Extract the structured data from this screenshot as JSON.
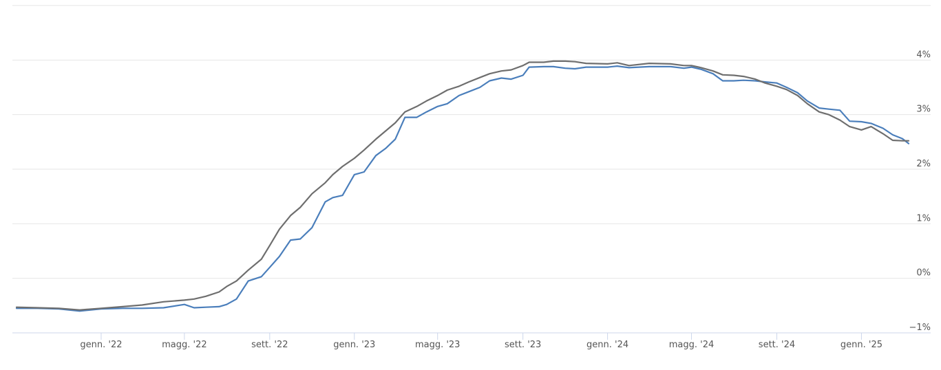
{
  "chart_data": {
    "type": "line",
    "title": "",
    "xlabel": "",
    "ylabel": "",
    "x_start": "2021-09",
    "x_end": "2025-03",
    "ylim": [
      -1,
      5
    ],
    "y_ticks": [
      {
        "value": -1,
        "label": "−1%"
      },
      {
        "value": 0,
        "label": "0%"
      },
      {
        "value": 1,
        "label": "1%"
      },
      {
        "value": 2,
        "label": "2%"
      },
      {
        "value": 3,
        "label": "3%"
      },
      {
        "value": 4,
        "label": "4%"
      }
    ],
    "x_ticks": [
      {
        "date": "2022-01-01",
        "label": "genn. '22"
      },
      {
        "date": "2022-05-01",
        "label": "magg. '22"
      },
      {
        "date": "2022-09-01",
        "label": "sett. '22"
      },
      {
        "date": "2023-01-01",
        "label": "genn. '23"
      },
      {
        "date": "2023-05-01",
        "label": "magg. '23"
      },
      {
        "date": "2023-09-01",
        "label": "sett. '23"
      },
      {
        "date": "2024-01-01",
        "label": "genn. '24"
      },
      {
        "date": "2024-05-01",
        "label": "magg. '24"
      },
      {
        "date": "2024-09-01",
        "label": "sett. '24"
      },
      {
        "date": "2025-01-01",
        "label": "genn. '25"
      }
    ],
    "grid": true,
    "legend": "none",
    "series": [
      {
        "color": "#4a7ebb",
        "points": [
          [
            "2021-09-01",
            -0.55
          ],
          [
            "2021-10-01",
            -0.55
          ],
          [
            "2021-11-01",
            -0.56
          ],
          [
            "2021-12-01",
            -0.6
          ],
          [
            "2022-01-01",
            -0.56
          ],
          [
            "2022-02-01",
            -0.55
          ],
          [
            "2022-03-01",
            -0.55
          ],
          [
            "2022-04-01",
            -0.54
          ],
          [
            "2022-05-01",
            -0.48
          ],
          [
            "2022-05-15",
            -0.54
          ],
          [
            "2022-06-01",
            -0.53
          ],
          [
            "2022-06-20",
            -0.52
          ],
          [
            "2022-07-01",
            -0.48
          ],
          [
            "2022-07-15",
            -0.38
          ],
          [
            "2022-08-01",
            -0.05
          ],
          [
            "2022-08-20",
            0.03
          ],
          [
            "2022-09-01",
            0.2
          ],
          [
            "2022-09-15",
            0.4
          ],
          [
            "2022-10-01",
            0.7
          ],
          [
            "2022-10-15",
            0.72
          ],
          [
            "2022-11-01",
            0.93
          ],
          [
            "2022-11-20",
            1.4
          ],
          [
            "2022-12-01",
            1.48
          ],
          [
            "2022-12-15",
            1.52
          ],
          [
            "2023-01-01",
            1.9
          ],
          [
            "2023-01-15",
            1.95
          ],
          [
            "2023-02-01",
            2.25
          ],
          [
            "2023-02-15",
            2.38
          ],
          [
            "2023-03-01",
            2.55
          ],
          [
            "2023-03-15",
            2.95
          ],
          [
            "2023-04-01",
            2.95
          ],
          [
            "2023-04-15",
            3.05
          ],
          [
            "2023-05-01",
            3.15
          ],
          [
            "2023-05-15",
            3.2
          ],
          [
            "2023-06-01",
            3.35
          ],
          [
            "2023-06-15",
            3.42
          ],
          [
            "2023-07-01",
            3.5
          ],
          [
            "2023-07-15",
            3.62
          ],
          [
            "2023-08-01",
            3.67
          ],
          [
            "2023-08-15",
            3.65
          ],
          [
            "2023-09-01",
            3.72
          ],
          [
            "2023-09-10",
            3.87
          ],
          [
            "2023-10-01",
            3.88
          ],
          [
            "2023-10-15",
            3.88
          ],
          [
            "2023-11-01",
            3.85
          ],
          [
            "2023-11-15",
            3.84
          ],
          [
            "2023-12-01",
            3.87
          ],
          [
            "2024-01-01",
            3.87
          ],
          [
            "2024-01-15",
            3.89
          ],
          [
            "2024-02-01",
            3.86
          ],
          [
            "2024-03-01",
            3.88
          ],
          [
            "2024-04-01",
            3.88
          ],
          [
            "2024-04-20",
            3.85
          ],
          [
            "2024-05-01",
            3.87
          ],
          [
            "2024-05-15",
            3.83
          ],
          [
            "2024-06-01",
            3.75
          ],
          [
            "2024-06-15",
            3.62
          ],
          [
            "2024-07-01",
            3.62
          ],
          [
            "2024-07-15",
            3.63
          ],
          [
            "2024-08-01",
            3.62
          ],
          [
            "2024-08-15",
            3.6
          ],
          [
            "2024-09-01",
            3.58
          ],
          [
            "2024-09-15",
            3.5
          ],
          [
            "2024-10-01",
            3.4
          ],
          [
            "2024-10-15",
            3.25
          ],
          [
            "2024-11-01",
            3.12
          ],
          [
            "2024-11-15",
            3.1
          ],
          [
            "2024-12-01",
            3.08
          ],
          [
            "2024-12-15",
            2.88
          ],
          [
            "2025-01-01",
            2.87
          ],
          [
            "2025-01-15",
            2.84
          ],
          [
            "2025-02-01",
            2.75
          ],
          [
            "2025-02-15",
            2.63
          ],
          [
            "2025-03-01",
            2.56
          ],
          [
            "2025-03-10",
            2.47
          ]
        ]
      },
      {
        "color": "#6e6e6e",
        "points": [
          [
            "2021-09-01",
            -0.53
          ],
          [
            "2021-10-01",
            -0.54
          ],
          [
            "2021-11-01",
            -0.55
          ],
          [
            "2021-12-01",
            -0.58
          ],
          [
            "2022-01-01",
            -0.55
          ],
          [
            "2022-02-01",
            -0.52
          ],
          [
            "2022-03-01",
            -0.49
          ],
          [
            "2022-04-01",
            -0.43
          ],
          [
            "2022-05-01",
            -0.4
          ],
          [
            "2022-05-15",
            -0.38
          ],
          [
            "2022-06-01",
            -0.33
          ],
          [
            "2022-06-20",
            -0.25
          ],
          [
            "2022-07-01",
            -0.15
          ],
          [
            "2022-07-15",
            -0.05
          ],
          [
            "2022-08-01",
            0.15
          ],
          [
            "2022-08-20",
            0.35
          ],
          [
            "2022-09-01",
            0.6
          ],
          [
            "2022-09-15",
            0.9
          ],
          [
            "2022-10-01",
            1.15
          ],
          [
            "2022-10-15",
            1.3
          ],
          [
            "2022-11-01",
            1.55
          ],
          [
            "2022-11-20",
            1.75
          ],
          [
            "2022-12-01",
            1.9
          ],
          [
            "2022-12-15",
            2.05
          ],
          [
            "2023-01-01",
            2.2
          ],
          [
            "2023-01-15",
            2.35
          ],
          [
            "2023-02-01",
            2.55
          ],
          [
            "2023-02-15",
            2.7
          ],
          [
            "2023-03-01",
            2.85
          ],
          [
            "2023-03-15",
            3.05
          ],
          [
            "2023-04-01",
            3.15
          ],
          [
            "2023-04-15",
            3.25
          ],
          [
            "2023-05-01",
            3.35
          ],
          [
            "2023-05-15",
            3.45
          ],
          [
            "2023-06-01",
            3.52
          ],
          [
            "2023-06-15",
            3.6
          ],
          [
            "2023-07-01",
            3.68
          ],
          [
            "2023-07-15",
            3.75
          ],
          [
            "2023-08-01",
            3.8
          ],
          [
            "2023-08-15",
            3.82
          ],
          [
            "2023-09-01",
            3.9
          ],
          [
            "2023-09-10",
            3.96
          ],
          [
            "2023-10-01",
            3.96
          ],
          [
            "2023-10-15",
            3.98
          ],
          [
            "2023-11-01",
            3.98
          ],
          [
            "2023-11-15",
            3.97
          ],
          [
            "2023-12-01",
            3.94
          ],
          [
            "2024-01-01",
            3.93
          ],
          [
            "2024-01-15",
            3.95
          ],
          [
            "2024-02-01",
            3.9
          ],
          [
            "2024-03-01",
            3.94
          ],
          [
            "2024-04-01",
            3.93
          ],
          [
            "2024-04-20",
            3.9
          ],
          [
            "2024-05-01",
            3.9
          ],
          [
            "2024-05-15",
            3.86
          ],
          [
            "2024-06-01",
            3.8
          ],
          [
            "2024-06-15",
            3.73
          ],
          [
            "2024-07-01",
            3.72
          ],
          [
            "2024-07-15",
            3.7
          ],
          [
            "2024-08-01",
            3.65
          ],
          [
            "2024-08-15",
            3.58
          ],
          [
            "2024-09-01",
            3.52
          ],
          [
            "2024-09-15",
            3.46
          ],
          [
            "2024-10-01",
            3.35
          ],
          [
            "2024-10-15",
            3.2
          ],
          [
            "2024-11-01",
            3.05
          ],
          [
            "2024-11-15",
            3.0
          ],
          [
            "2024-12-01",
            2.9
          ],
          [
            "2024-12-15",
            2.78
          ],
          [
            "2025-01-01",
            2.72
          ],
          [
            "2025-01-15",
            2.78
          ],
          [
            "2025-02-01",
            2.65
          ],
          [
            "2025-02-15",
            2.53
          ],
          [
            "2025-03-01",
            2.52
          ],
          [
            "2025-03-10",
            2.52
          ]
        ]
      }
    ]
  }
}
